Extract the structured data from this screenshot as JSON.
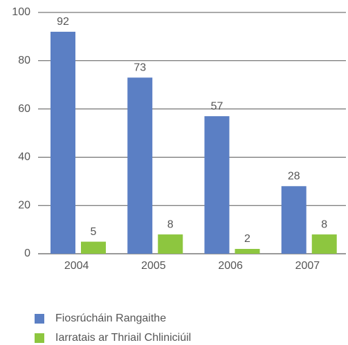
{
  "chart_data": {
    "type": "bar",
    "categories": [
      "2004",
      "2005",
      "2006",
      "2007"
    ],
    "series": [
      {
        "name": "Fiosrúcháin Rangaithe",
        "color": "#5b7fc4",
        "values": [
          92,
          73,
          57,
          28
        ]
      },
      {
        "name": "Iarratais ar Thriail Chliniciúil",
        "color": "#8dc63f",
        "values": [
          5,
          8,
          2,
          8
        ]
      }
    ],
    "ylim": [
      0,
      100
    ],
    "yticks": [
      0,
      20,
      40,
      60,
      80,
      100
    ],
    "grid": true,
    "legend": "bottom"
  }
}
